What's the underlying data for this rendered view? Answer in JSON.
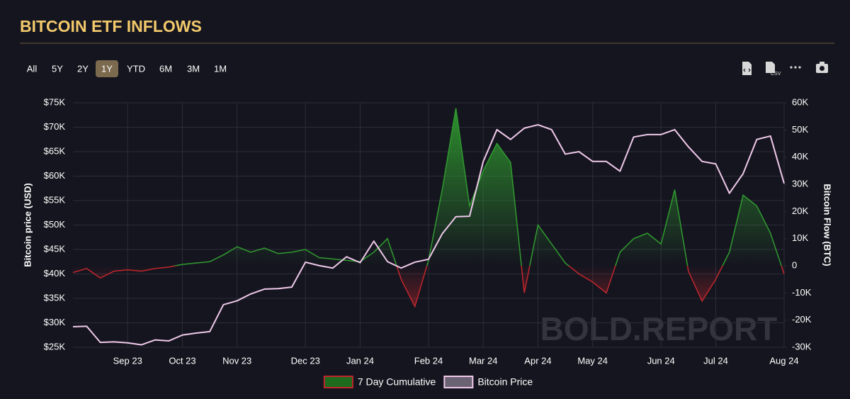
{
  "header": {
    "title": "BITCOIN ETF INFLOWS"
  },
  "toolbar": {
    "ranges": [
      "All",
      "5Y",
      "2Y",
      "1Y",
      "YTD",
      "6M",
      "3M",
      "1M"
    ],
    "selected": 3,
    "csv": "CSV"
  },
  "chart_data": {
    "type": "line",
    "categories": [
      null,
      null,
      null,
      null,
      "Sep 23",
      null,
      null,
      null,
      "Oct 23",
      null,
      null,
      null,
      "Nov 23",
      null,
      null,
      null,
      null,
      "Dec 23",
      null,
      null,
      null,
      "Jan 24",
      null,
      null,
      null,
      null,
      "Feb 24",
      null,
      null,
      null,
      "Mar 24",
      null,
      null,
      null,
      "Apr 24",
      null,
      null,
      null,
      "May 24",
      null,
      null,
      null,
      null,
      "Jun 24",
      null,
      null,
      null,
      "Jul 24",
      null,
      null,
      null,
      null,
      "Aug 24"
    ],
    "series": [
      {
        "name": "7 Day Cumulative",
        "type": "area",
        "axis": "y2",
        "color": "#2f9a2f",
        "negative_color": "#c0262c",
        "values": [
          -2500,
          -1000,
          -4500,
          -2000,
          -1500,
          -2000,
          -1000,
          -500,
          500,
          1000,
          1500,
          4000,
          7000,
          5000,
          6500,
          4500,
          5000,
          6000,
          3000,
          2500,
          2000,
          1500,
          5000,
          10000,
          -5000,
          -15000,
          2000,
          28000,
          58000,
          22000,
          35000,
          45000,
          38000,
          -10000,
          15000,
          8000,
          1000,
          -3000,
          -6000,
          -10000,
          5000,
          10000,
          12000,
          8000,
          28000,
          -2000,
          -13000,
          -5000,
          5000,
          26000,
          22000,
          12000,
          -3000
        ]
      },
      {
        "name": "Bitcoin Price",
        "type": "line",
        "color": "#efc9ea",
        "values": [
          29200,
          29300,
          26000,
          26100,
          25900,
          25500,
          26500,
          26300,
          27500,
          27900,
          28200,
          33700,
          34500,
          35900,
          36900,
          37000,
          37300,
          42400,
          41700,
          41200,
          43500,
          42300,
          46700,
          42500,
          41200,
          42400,
          43000,
          48200,
          51700,
          51800,
          63000,
          69500,
          67500,
          69800,
          70500,
          69500,
          64500,
          65000,
          63000,
          63000,
          61000,
          68000,
          68500,
          68500,
          69500,
          66000,
          63000,
          62500,
          56500,
          60500,
          67500,
          68200,
          58500
        ]
      }
    ],
    "ylim": [
      25000,
      75000
    ],
    "yticks": [
      {
        "value": 25000,
        "label": "$25K"
      },
      {
        "value": 30000,
        "label": "$30K"
      },
      {
        "value": 35000,
        "label": "$35K"
      },
      {
        "value": 40000,
        "label": "$40K"
      },
      {
        "value": 45000,
        "label": "$45K"
      },
      {
        "value": 50000,
        "label": "$50K"
      },
      {
        "value": 55000,
        "label": "$55K"
      },
      {
        "value": 60000,
        "label": "$60K"
      },
      {
        "value": 65000,
        "label": "$65K"
      },
      {
        "value": 70000,
        "label": "$70K"
      },
      {
        "value": 75000,
        "label": "$75K"
      }
    ],
    "y2lim": [
      -30000,
      60000
    ],
    "y2ticks": [
      {
        "value": -30000,
        "label": "-30K"
      },
      {
        "value": -20000,
        "label": "-20K"
      },
      {
        "value": -10000,
        "label": "-10K"
      },
      0,
      {
        "value": 10000,
        "label": "10K"
      },
      {
        "value": 20000,
        "label": "20K"
      },
      {
        "value": 30000,
        "label": "30K"
      },
      {
        "value": 40000,
        "label": "40K"
      },
      {
        "value": 50000,
        "label": "50K"
      },
      {
        "value": 60000,
        "label": "60K"
      }
    ],
    "ylabel": "Bitcoin price (USD)",
    "y2label": "Bitcoin Flow (BTC)",
    "grid": true,
    "legend": "bottom",
    "watermark": "BOLD.REPORT"
  }
}
